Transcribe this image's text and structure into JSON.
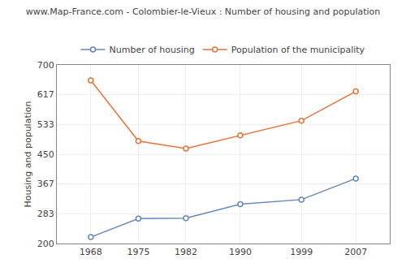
{
  "chart_data": {
    "type": "line",
    "title": "www.Map-France.com - Colombier-le-Vieux : Number of housing and population",
    "ylabel": "Housing and population",
    "x": [
      1968,
      1975,
      1982,
      1990,
      1999,
      2007
    ],
    "series": [
      {
        "name": "Number of housing",
        "color": "#6688bb",
        "values": [
          218,
          270,
          271,
          310,
          323,
          382
        ],
        "marker": "circle",
        "line_style": "solid"
      },
      {
        "name": "Population of the municipality",
        "color": "#e8733a",
        "values": [
          657,
          487,
          466,
          503,
          544,
          626
        ],
        "marker": "circle",
        "line_style": "solid"
      }
    ],
    "xlim": [
      1963,
      2012
    ],
    "xticks": [
      1968,
      1975,
      1982,
      1990,
      1999,
      2007
    ],
    "ylim": [
      200,
      700
    ],
    "yticks": [
      200,
      283,
      367,
      450,
      533,
      617,
      700
    ],
    "grid": true,
    "legend": "top"
  }
}
